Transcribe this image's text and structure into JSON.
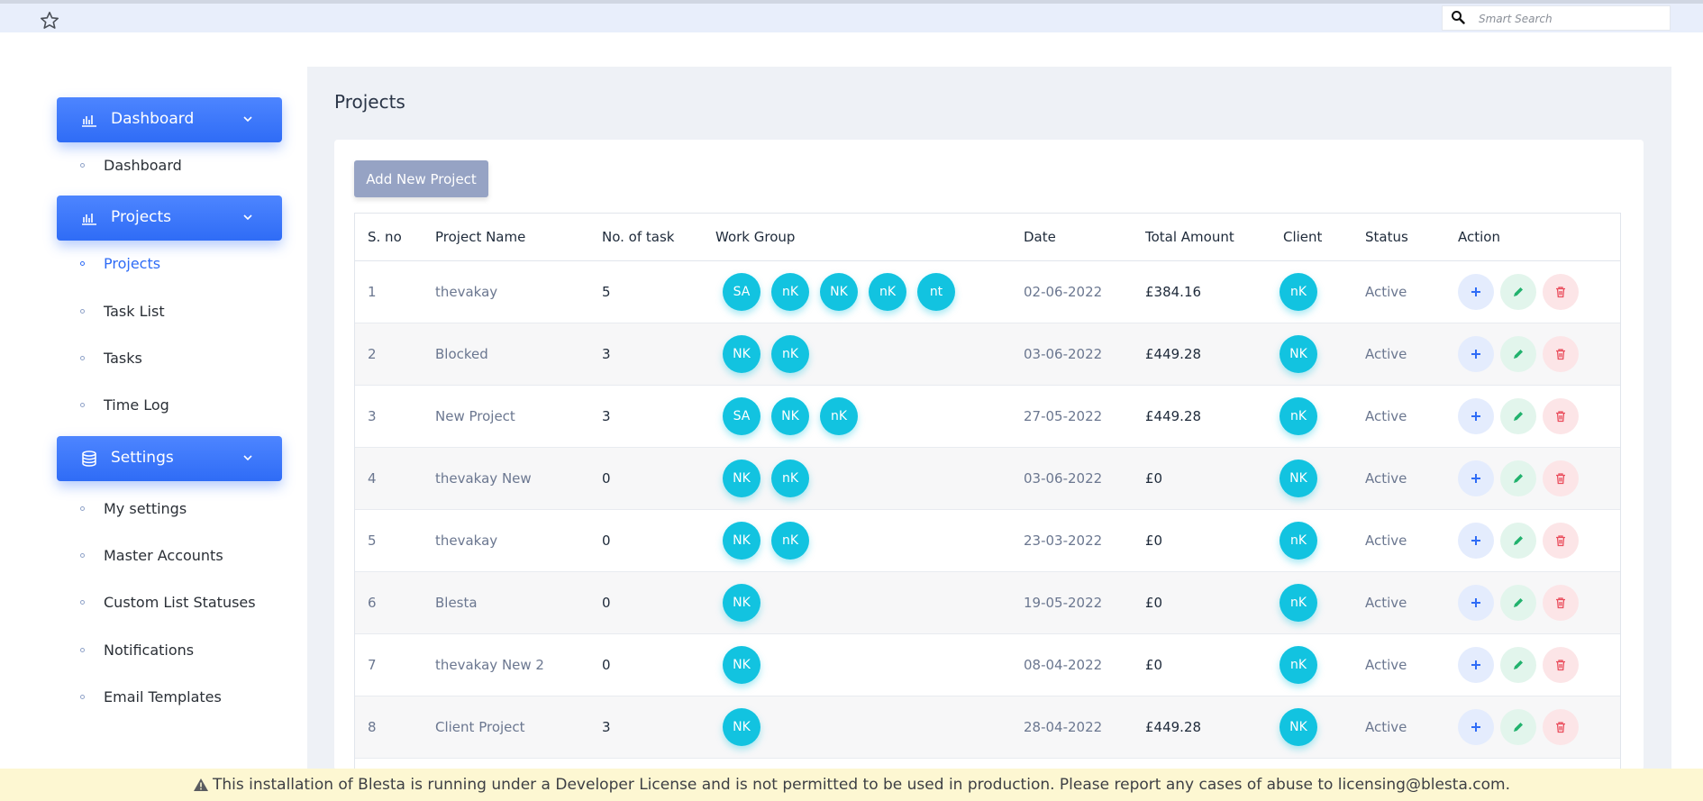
{
  "search": {
    "placeholder": "Smart Search"
  },
  "sidebar": {
    "sections": [
      {
        "label": "Dashboard",
        "icon": "bar-chart-icon",
        "items": [
          "Dashboard"
        ]
      },
      {
        "label": "Projects",
        "icon": "bar-chart-icon",
        "items": [
          "Projects",
          "Task List",
          "Tasks",
          "Time Log"
        ]
      },
      {
        "label": "Settings",
        "icon": "database-icon",
        "items": [
          "My settings",
          "Master Accounts",
          "Custom List Statuses",
          "Notifications",
          "Email Templates"
        ]
      }
    ],
    "active_item": "Projects"
  },
  "main": {
    "title": "Projects",
    "add_button": "Add New Project",
    "table": {
      "headers": [
        "S. no",
        "Project Name",
        "No. of task",
        "Work Group",
        "Date",
        "Total Amount",
        "Client",
        "Status",
        "Action"
      ],
      "rows": [
        {
          "sno": "1",
          "name": "thevakay",
          "tasks": "5",
          "group": [
            "SA",
            "nK",
            "NK",
            "nK",
            "nt"
          ],
          "date": "02-06-2022",
          "amount": "£384.16",
          "client": "nK",
          "status": "Active"
        },
        {
          "sno": "2",
          "name": "Blocked",
          "tasks": "3",
          "group": [
            "NK",
            "nK"
          ],
          "date": "03-06-2022",
          "amount": "£449.28",
          "client": "NK",
          "status": "Active"
        },
        {
          "sno": "3",
          "name": "New Project",
          "tasks": "3",
          "group": [
            "SA",
            "NK",
            "nK"
          ],
          "date": "27-05-2022",
          "amount": "£449.28",
          "client": "nK",
          "status": "Active"
        },
        {
          "sno": "4",
          "name": "thevakay New",
          "tasks": "0",
          "group": [
            "NK",
            "nK"
          ],
          "date": "03-06-2022",
          "amount": "£0",
          "client": "NK",
          "status": "Active"
        },
        {
          "sno": "5",
          "name": "thevakay",
          "tasks": "0",
          "group": [
            "NK",
            "nK"
          ],
          "date": "23-03-2022",
          "amount": "£0",
          "client": "nK",
          "status": "Active"
        },
        {
          "sno": "6",
          "name": "Blesta",
          "tasks": "0",
          "group": [
            "NK"
          ],
          "date": "19-05-2022",
          "amount": "£0",
          "client": "nK",
          "status": "Active"
        },
        {
          "sno": "7",
          "name": "thevakay New 2",
          "tasks": "0",
          "group": [
            "NK"
          ],
          "date": "08-04-2022",
          "amount": "£0",
          "client": "nK",
          "status": "Active"
        },
        {
          "sno": "8",
          "name": "Client Project",
          "tasks": "3",
          "group": [
            "NK"
          ],
          "date": "28-04-2022",
          "amount": "£449.28",
          "client": "NK",
          "status": "Active"
        }
      ]
    }
  },
  "banner": {
    "text": "This installation of Blesta is running under a Developer License and is not permitted to be used in production. Please report any cases of abuse to licensing@blesta.com."
  },
  "colors": {
    "primary": "#2f6cf6",
    "avatar": "#12c3e0",
    "banner_bg": "#fdf7d2"
  }
}
